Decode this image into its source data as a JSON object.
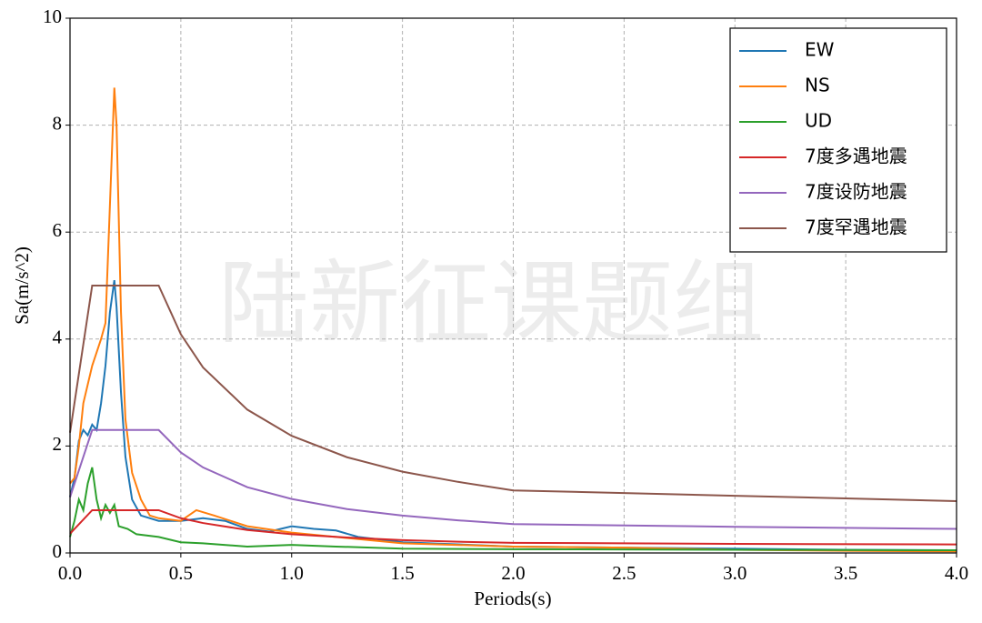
{
  "chart_data": {
    "type": "line",
    "xlabel": "Periods(s)",
    "ylabel": "Sa(m/s^2)",
    "watermark": "陆新征课题组",
    "xlim": [
      0,
      4
    ],
    "ylim": [
      0,
      10
    ],
    "xticks": [
      {
        "value": 0,
        "label": "0.0"
      },
      0.5,
      {
        "value": 1,
        "label": "1.0"
      },
      1.5,
      {
        "value": 2,
        "label": "2.0"
      },
      2.5,
      {
        "value": 3,
        "label": "3.0"
      },
      3.5,
      {
        "value": 4,
        "label": "4.0"
      }
    ],
    "yticks": [
      0,
      2,
      4,
      6,
      8,
      10
    ],
    "grid": true,
    "legend": "upper right",
    "series": [
      {
        "name": "EW",
        "color": "#1f77b4",
        "x": [
          0,
          0.02,
          0.04,
          0.06,
          0.08,
          0.1,
          0.12,
          0.14,
          0.16,
          0.18,
          0.2,
          0.21,
          0.23,
          0.25,
          0.28,
          0.32,
          0.4,
          0.5,
          0.6,
          0.7,
          0.8,
          0.9,
          1.0,
          1.1,
          1.2,
          1.3,
          1.4,
          1.5,
          2.0,
          2.5,
          3.0,
          3.5,
          4.0
        ],
        "values": [
          1.05,
          1.4,
          2.1,
          2.3,
          2.2,
          2.4,
          2.3,
          2.8,
          3.5,
          4.5,
          5.1,
          4.6,
          3.0,
          1.8,
          1.0,
          0.7,
          0.6,
          0.6,
          0.65,
          0.6,
          0.45,
          0.4,
          0.5,
          0.45,
          0.42,
          0.3,
          0.25,
          0.2,
          0.12,
          0.1,
          0.08,
          0.06,
          0.05
        ]
      },
      {
        "name": "NS",
        "color": "#ff7f0e",
        "x": [
          0,
          0.02,
          0.04,
          0.06,
          0.1,
          0.14,
          0.16,
          0.18,
          0.2,
          0.21,
          0.23,
          0.25,
          0.28,
          0.32,
          0.36,
          0.4,
          0.5,
          0.57,
          0.65,
          0.8,
          1.0,
          1.2,
          1.5,
          2.0,
          2.5,
          3.0,
          3.5,
          4.0
        ],
        "values": [
          1.3,
          1.4,
          2.0,
          2.8,
          3.5,
          4.0,
          4.3,
          6.5,
          8.7,
          8.0,
          4.5,
          2.5,
          1.5,
          1.0,
          0.7,
          0.65,
          0.6,
          0.8,
          0.7,
          0.5,
          0.38,
          0.3,
          0.18,
          0.12,
          0.1,
          0.06,
          0.04,
          0.03
        ]
      },
      {
        "name": "UD",
        "color": "#2ca02c",
        "x": [
          0,
          0.02,
          0.04,
          0.06,
          0.08,
          0.1,
          0.12,
          0.14,
          0.16,
          0.18,
          0.2,
          0.22,
          0.26,
          0.3,
          0.4,
          0.5,
          0.6,
          0.8,
          1.0,
          1.2,
          1.5,
          2.0,
          3.0,
          4.0
        ],
        "values": [
          0.3,
          0.6,
          1.0,
          0.8,
          1.3,
          1.6,
          1.0,
          0.65,
          0.9,
          0.75,
          0.9,
          0.5,
          0.45,
          0.35,
          0.3,
          0.2,
          0.18,
          0.12,
          0.15,
          0.12,
          0.08,
          0.07,
          0.06,
          0.05
        ]
      },
      {
        "name": "7度多遇地震",
        "color": "#d62728",
        "x": [
          0,
          0.1,
          0.4,
          0.5,
          0.6,
          0.8,
          1.0,
          1.25,
          1.5,
          1.75,
          2.0,
          3.0,
          4.0
        ],
        "values": [
          0.36,
          0.8,
          0.8,
          0.65,
          0.56,
          0.43,
          0.35,
          0.29,
          0.24,
          0.21,
          0.19,
          0.17,
          0.16
        ]
      },
      {
        "name": "7度设防地震",
        "color": "#9467bd",
        "x": [
          0,
          0.1,
          0.4,
          0.5,
          0.6,
          0.8,
          1.0,
          1.25,
          1.5,
          1.75,
          2.0,
          3.0,
          4.0
        ],
        "values": [
          1.04,
          2.3,
          2.3,
          1.88,
          1.6,
          1.23,
          1.01,
          0.82,
          0.7,
          0.61,
          0.54,
          0.49,
          0.45
        ]
      },
      {
        "name": "7度罕遇地震",
        "color": "#8c564b",
        "x": [
          0,
          0.1,
          0.4,
          0.5,
          0.6,
          0.8,
          1.0,
          1.25,
          1.5,
          1.75,
          2.0,
          3.0,
          4.0
        ],
        "values": [
          2.25,
          5.0,
          5.0,
          4.09,
          3.47,
          2.68,
          2.19,
          1.79,
          1.52,
          1.33,
          1.17,
          1.07,
          0.97
        ]
      }
    ]
  }
}
